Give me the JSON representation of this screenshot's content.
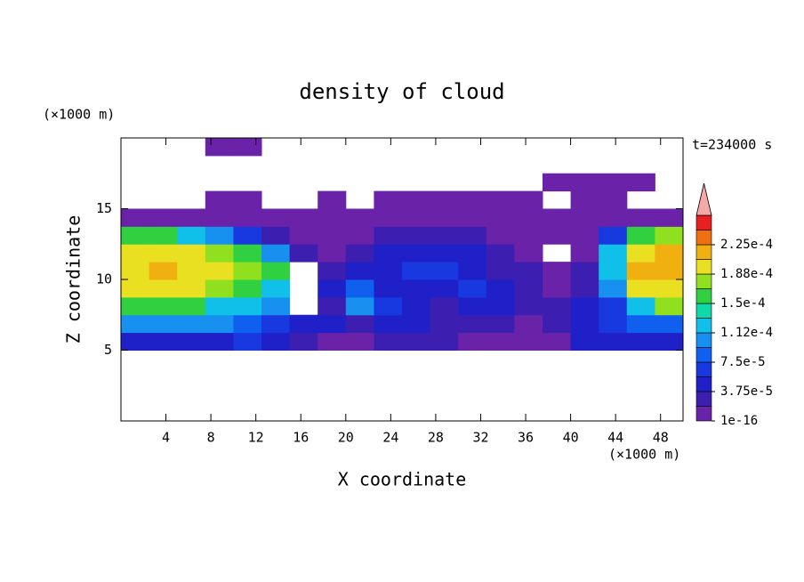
{
  "chart_data": {
    "type": "contour",
    "title": "density of cloud",
    "xlabel": "X coordinate",
    "ylabel": "Z coordinate",
    "xunit": "(×1000 m)",
    "yunit": "(×1000 m)",
    "time_label": "t=234000 s",
    "xlim": [
      0,
      50
    ],
    "ylim": [
      0,
      20
    ],
    "xticks": [
      4,
      8,
      12,
      16,
      20,
      24,
      28,
      32,
      36,
      40,
      44,
      48
    ],
    "yticks": [
      5,
      10,
      15
    ],
    "x": [
      1.25,
      3.75,
      6.25,
      8.75,
      11.25,
      13.75,
      16.25,
      18.75,
      21.25,
      23.75,
      26.25,
      28.75,
      31.25,
      33.75,
      36.25,
      38.75,
      41.25,
      43.75,
      46.25,
      48.75
    ],
    "y": [
      5.625,
      6.875,
      8.125,
      9.375,
      10.625,
      11.875,
      13.125,
      14.375,
      15.625,
      16.875,
      18.125,
      19.375
    ],
    "z": [
      [
        5e-05,
        5e-05,
        5e-05,
        5e-05,
        7e-05,
        5e-05,
        3e-05,
        1e-05,
        1e-05,
        3e-05,
        3e-05,
        3e-05,
        1e-05,
        1e-05,
        1e-05,
        1e-05,
        5e-05,
        5e-05,
        5e-05,
        5e-05
      ],
      [
        0.00011,
        0.00011,
        0.00011,
        0.00011,
        9e-05,
        7e-05,
        5e-05,
        5e-05,
        3e-05,
        5e-05,
        5e-05,
        3e-05,
        3e-05,
        3e-05,
        1e-05,
        3e-05,
        5e-05,
        7e-05,
        9e-05,
        9e-05
      ],
      [
        0.00015,
        0.00015,
        0.00015,
        0.00013,
        0.00013,
        0.00011,
        null,
        3e-05,
        0.00011,
        7e-05,
        5e-05,
        3e-05,
        5e-05,
        5e-05,
        3e-05,
        3e-05,
        5e-05,
        7e-05,
        0.00013,
        0.00017
      ],
      [
        0.00019,
        0.00019,
        0.00019,
        0.00017,
        0.00015,
        0.00013,
        null,
        5e-05,
        9e-05,
        5e-05,
        5e-05,
        5e-05,
        7e-05,
        5e-05,
        3e-05,
        1e-05,
        3e-05,
        0.00011,
        0.00019,
        0.00019
      ],
      [
        0.00019,
        0.00021,
        0.00019,
        0.00019,
        0.00017,
        0.00015,
        null,
        3e-05,
        5e-05,
        5e-05,
        7e-05,
        7e-05,
        5e-05,
        3e-05,
        3e-05,
        1e-05,
        3e-05,
        0.00013,
        0.00021,
        0.00021
      ],
      [
        0.00019,
        0.00019,
        0.00019,
        0.00017,
        0.00015,
        0.00011,
        3e-05,
        1e-05,
        3e-05,
        5e-05,
        5e-05,
        5e-05,
        5e-05,
        3e-05,
        1e-05,
        null,
        1e-05,
        0.00013,
        0.00019,
        0.00021
      ],
      [
        0.00015,
        0.00015,
        0.00013,
        0.00011,
        7e-05,
        3e-05,
        1e-05,
        1e-05,
        1e-05,
        3e-05,
        3e-05,
        3e-05,
        3e-05,
        1e-05,
        1e-05,
        1e-05,
        1e-05,
        7e-05,
        0.00015,
        0.00017
      ],
      [
        1e-05,
        1e-05,
        1e-05,
        1e-05,
        1e-05,
        1e-05,
        1e-05,
        1e-05,
        1e-05,
        1e-05,
        1e-05,
        1e-05,
        1e-05,
        1e-05,
        1e-05,
        1e-05,
        1e-05,
        1e-05,
        1e-05,
        1e-05
      ],
      [
        null,
        null,
        null,
        1e-05,
        1e-05,
        null,
        null,
        1e-05,
        null,
        1e-05,
        1e-05,
        1e-05,
        1e-05,
        1e-05,
        1e-05,
        null,
        1e-05,
        1e-05,
        null,
        null
      ],
      [
        null,
        null,
        null,
        null,
        null,
        null,
        null,
        null,
        null,
        null,
        null,
        null,
        null,
        null,
        null,
        1e-05,
        1e-05,
        1e-05,
        1e-05,
        null
      ],
      [
        null,
        null,
        null,
        null,
        null,
        null,
        null,
        null,
        null,
        null,
        null,
        null,
        null,
        null,
        null,
        null,
        null,
        null,
        null,
        null
      ],
      [
        null,
        null,
        null,
        1e-05,
        1e-05,
        null,
        null,
        null,
        null,
        null,
        null,
        null,
        null,
        null,
        null,
        null,
        null,
        null,
        null,
        null
      ]
    ],
    "levels": [
      1e-16,
      1.875e-05,
      3.75e-05,
      5.625e-05,
      7.5e-05,
      9.375e-05,
      0.0001125,
      0.00013125,
      0.00015,
      0.00016875,
      0.0001875,
      0.00020625,
      0.000225,
      0.00024375,
      0.0002625
    ],
    "colors": [
      "#6a22a8",
      "#3c1fb0",
      "#2020c8",
      "#1838e0",
      "#1060f0",
      "#1890f0",
      "#10c0e8",
      "#10d8a8",
      "#30d040",
      "#90e020",
      "#e8e020",
      "#f0b010",
      "#f07010",
      "#e82020"
    ],
    "extend_color": "#f4a8a8",
    "colorbar_ticks": [
      {
        "value": 1e-16,
        "label": "1e-16"
      },
      {
        "value": 3.75e-05,
        "label": "3.75e-5"
      },
      {
        "value": 7.5e-05,
        "label": "7.5e-5"
      },
      {
        "value": 0.0001125,
        "label": "1.12e-4"
      },
      {
        "value": 0.00015,
        "label": "1.5e-4"
      },
      {
        "value": 0.0001875,
        "label": "1.88e-4"
      },
      {
        "value": 0.000225,
        "label": "2.25e-4"
      }
    ]
  }
}
